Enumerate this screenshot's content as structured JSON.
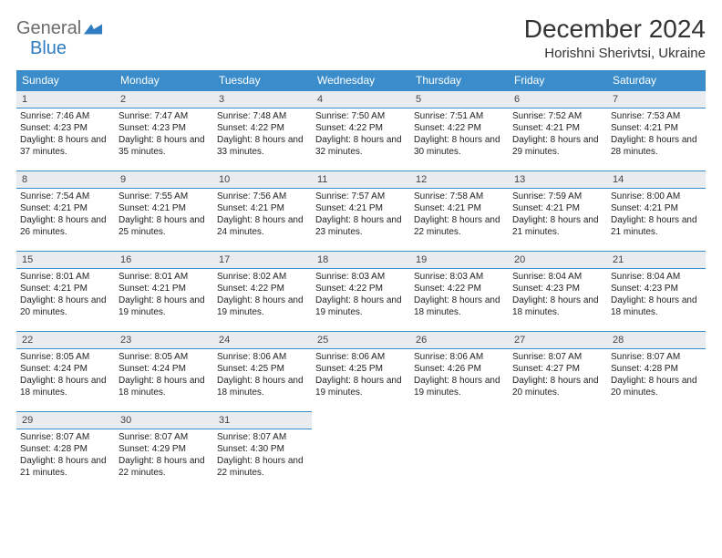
{
  "brand": {
    "word1": "General",
    "word2": "Blue",
    "color_general": "#6a6a6a",
    "color_blue": "#2f7cc0"
  },
  "title": "December 2024",
  "location": "Horishni Sherivtsi, Ukraine",
  "header_bg": "#3a8cca",
  "header_fg": "#ffffff",
  "daynum_bg": "#e9ecef",
  "border_color": "#3a8cca",
  "weekdays": [
    "Sunday",
    "Monday",
    "Tuesday",
    "Wednesday",
    "Thursday",
    "Friday",
    "Saturday"
  ],
  "weeks": [
    [
      {
        "n": "1",
        "sr": "Sunrise: 7:46 AM",
        "ss": "Sunset: 4:23 PM",
        "dl": "Daylight: 8 hours and 37 minutes."
      },
      {
        "n": "2",
        "sr": "Sunrise: 7:47 AM",
        "ss": "Sunset: 4:23 PM",
        "dl": "Daylight: 8 hours and 35 minutes."
      },
      {
        "n": "3",
        "sr": "Sunrise: 7:48 AM",
        "ss": "Sunset: 4:22 PM",
        "dl": "Daylight: 8 hours and 33 minutes."
      },
      {
        "n": "4",
        "sr": "Sunrise: 7:50 AM",
        "ss": "Sunset: 4:22 PM",
        "dl": "Daylight: 8 hours and 32 minutes."
      },
      {
        "n": "5",
        "sr": "Sunrise: 7:51 AM",
        "ss": "Sunset: 4:22 PM",
        "dl": "Daylight: 8 hours and 30 minutes."
      },
      {
        "n": "6",
        "sr": "Sunrise: 7:52 AM",
        "ss": "Sunset: 4:21 PM",
        "dl": "Daylight: 8 hours and 29 minutes."
      },
      {
        "n": "7",
        "sr": "Sunrise: 7:53 AM",
        "ss": "Sunset: 4:21 PM",
        "dl": "Daylight: 8 hours and 28 minutes."
      }
    ],
    [
      {
        "n": "8",
        "sr": "Sunrise: 7:54 AM",
        "ss": "Sunset: 4:21 PM",
        "dl": "Daylight: 8 hours and 26 minutes."
      },
      {
        "n": "9",
        "sr": "Sunrise: 7:55 AM",
        "ss": "Sunset: 4:21 PM",
        "dl": "Daylight: 8 hours and 25 minutes."
      },
      {
        "n": "10",
        "sr": "Sunrise: 7:56 AM",
        "ss": "Sunset: 4:21 PM",
        "dl": "Daylight: 8 hours and 24 minutes."
      },
      {
        "n": "11",
        "sr": "Sunrise: 7:57 AM",
        "ss": "Sunset: 4:21 PM",
        "dl": "Daylight: 8 hours and 23 minutes."
      },
      {
        "n": "12",
        "sr": "Sunrise: 7:58 AM",
        "ss": "Sunset: 4:21 PM",
        "dl": "Daylight: 8 hours and 22 minutes."
      },
      {
        "n": "13",
        "sr": "Sunrise: 7:59 AM",
        "ss": "Sunset: 4:21 PM",
        "dl": "Daylight: 8 hours and 21 minutes."
      },
      {
        "n": "14",
        "sr": "Sunrise: 8:00 AM",
        "ss": "Sunset: 4:21 PM",
        "dl": "Daylight: 8 hours and 21 minutes."
      }
    ],
    [
      {
        "n": "15",
        "sr": "Sunrise: 8:01 AM",
        "ss": "Sunset: 4:21 PM",
        "dl": "Daylight: 8 hours and 20 minutes."
      },
      {
        "n": "16",
        "sr": "Sunrise: 8:01 AM",
        "ss": "Sunset: 4:21 PM",
        "dl": "Daylight: 8 hours and 19 minutes."
      },
      {
        "n": "17",
        "sr": "Sunrise: 8:02 AM",
        "ss": "Sunset: 4:22 PM",
        "dl": "Daylight: 8 hours and 19 minutes."
      },
      {
        "n": "18",
        "sr": "Sunrise: 8:03 AM",
        "ss": "Sunset: 4:22 PM",
        "dl": "Daylight: 8 hours and 19 minutes."
      },
      {
        "n": "19",
        "sr": "Sunrise: 8:03 AM",
        "ss": "Sunset: 4:22 PM",
        "dl": "Daylight: 8 hours and 18 minutes."
      },
      {
        "n": "20",
        "sr": "Sunrise: 8:04 AM",
        "ss": "Sunset: 4:23 PM",
        "dl": "Daylight: 8 hours and 18 minutes."
      },
      {
        "n": "21",
        "sr": "Sunrise: 8:04 AM",
        "ss": "Sunset: 4:23 PM",
        "dl": "Daylight: 8 hours and 18 minutes."
      }
    ],
    [
      {
        "n": "22",
        "sr": "Sunrise: 8:05 AM",
        "ss": "Sunset: 4:24 PM",
        "dl": "Daylight: 8 hours and 18 minutes."
      },
      {
        "n": "23",
        "sr": "Sunrise: 8:05 AM",
        "ss": "Sunset: 4:24 PM",
        "dl": "Daylight: 8 hours and 18 minutes."
      },
      {
        "n": "24",
        "sr": "Sunrise: 8:06 AM",
        "ss": "Sunset: 4:25 PM",
        "dl": "Daylight: 8 hours and 18 minutes."
      },
      {
        "n": "25",
        "sr": "Sunrise: 8:06 AM",
        "ss": "Sunset: 4:25 PM",
        "dl": "Daylight: 8 hours and 19 minutes."
      },
      {
        "n": "26",
        "sr": "Sunrise: 8:06 AM",
        "ss": "Sunset: 4:26 PM",
        "dl": "Daylight: 8 hours and 19 minutes."
      },
      {
        "n": "27",
        "sr": "Sunrise: 8:07 AM",
        "ss": "Sunset: 4:27 PM",
        "dl": "Daylight: 8 hours and 20 minutes."
      },
      {
        "n": "28",
        "sr": "Sunrise: 8:07 AM",
        "ss": "Sunset: 4:28 PM",
        "dl": "Daylight: 8 hours and 20 minutes."
      }
    ],
    [
      {
        "n": "29",
        "sr": "Sunrise: 8:07 AM",
        "ss": "Sunset: 4:28 PM",
        "dl": "Daylight: 8 hours and 21 minutes."
      },
      {
        "n": "30",
        "sr": "Sunrise: 8:07 AM",
        "ss": "Sunset: 4:29 PM",
        "dl": "Daylight: 8 hours and 22 minutes."
      },
      {
        "n": "31",
        "sr": "Sunrise: 8:07 AM",
        "ss": "Sunset: 4:30 PM",
        "dl": "Daylight: 8 hours and 22 minutes."
      },
      null,
      null,
      null,
      null
    ]
  ]
}
